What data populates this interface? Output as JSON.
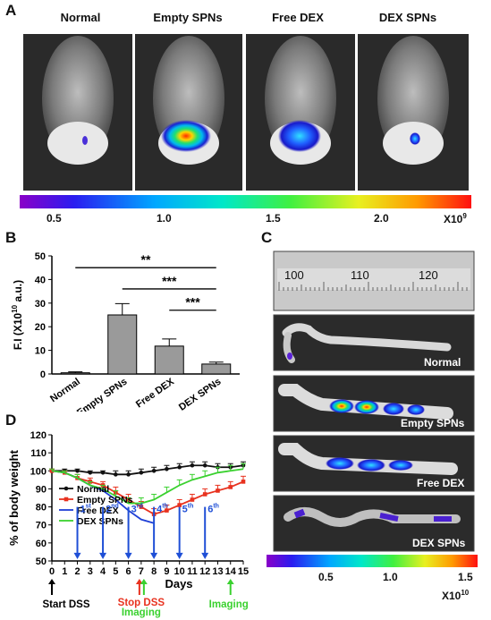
{
  "panelA": {
    "letter": "A",
    "groups": [
      "Normal",
      "Empty SPNs",
      "Free DEX",
      "DEX SPNs"
    ],
    "colorbar": {
      "ticks": [
        "0.5",
        "1.0",
        "1.5",
        "2.0"
      ],
      "unit_base": "X10",
      "unit_exp": "9"
    }
  },
  "panelB": {
    "letter": "B"
  },
  "panelC": {
    "letter": "C",
    "ruler_numbers": [
      "100",
      "110",
      "120"
    ],
    "colon_labels": [
      "Normal",
      "Empty SPNs",
      "Free DEX",
      "DEX SPNs"
    ],
    "colorbar": {
      "ticks": [
        "0.5",
        "1.0",
        "1.5"
      ],
      "unit_base": "X10",
      "unit_exp": "10"
    }
  },
  "panelD": {
    "letter": "D",
    "annotations": {
      "start": "Start DSS",
      "stop": "Stop DSS",
      "imaging_mid": "Imaging",
      "imaging_end": "Imaging",
      "doses": [
        {
          "num": "1",
          "sup": "st",
          "day": 2
        },
        {
          "num": "2",
          "sup": "nd",
          "day": 4
        },
        {
          "num": "3",
          "sup": "rd",
          "day": 6
        },
        {
          "num": "4",
          "sup": "th",
          "day": 8
        },
        {
          "num": "5",
          "sup": "th",
          "day": 10
        },
        {
          "num": "6",
          "sup": "th",
          "day": 12
        }
      ]
    }
  },
  "chart_data": [
    {
      "type": "bar",
      "ylabel": "F.I (X10 10 a.u.)",
      "ylabel_parts": {
        "pre": "F.I (X10",
        "exp": "10",
        "post": " a.u.)"
      },
      "categories": [
        "Normal",
        "Empty SPNs",
        "Free DEX",
        "DEX SPNs"
      ],
      "values": [
        0.5,
        25,
        11.8,
        4.2
      ],
      "errors": [
        0.4,
        4.8,
        3.0,
        0.8
      ],
      "ylim": [
        0,
        50
      ],
      "yticks": [
        0,
        10,
        20,
        30,
        40,
        50
      ],
      "significance": [
        {
          "from": "Normal",
          "to": "DEX SPNs",
          "label": "**"
        },
        {
          "from": "Empty SPNs",
          "to": "DEX SPNs",
          "label": "***"
        },
        {
          "from": "Free DEX",
          "to": "DEX SPNs",
          "label": "***"
        }
      ]
    },
    {
      "type": "line",
      "xlabel": "Days",
      "ylabel": "% of body weight",
      "xlim": [
        0,
        15
      ],
      "ylim": [
        50,
        120
      ],
      "xticks": [
        0,
        1,
        2,
        3,
        4,
        5,
        6,
        7,
        8,
        9,
        10,
        11,
        12,
        13,
        14,
        15
      ],
      "yticks": [
        50,
        60,
        70,
        80,
        90,
        100,
        110,
        120
      ],
      "legend_position": "left",
      "series": [
        {
          "name": "Normal",
          "color": "#111111",
          "marker": "circle",
          "x": [
            0,
            1,
            2,
            3,
            4,
            5,
            6,
            7,
            8,
            9,
            10,
            11,
            12,
            13,
            14,
            15
          ],
          "y": [
            100,
            100,
            100,
            99,
            99,
            98,
            98,
            99,
            100,
            101,
            102,
            103,
            103,
            102,
            102,
            103
          ],
          "err": [
            1,
            1,
            1,
            1,
            1,
            2,
            2,
            2,
            2,
            2,
            2,
            2,
            2,
            2,
            2,
            2
          ]
        },
        {
          "name": "Empty SPNs",
          "color": "#e8321f",
          "marker": "square",
          "x": [
            0,
            1,
            2,
            3,
            4,
            5,
            6,
            7,
            8,
            9,
            10,
            11,
            12,
            13,
            14,
            15
          ],
          "y": [
            100,
            99,
            96,
            94,
            92,
            88,
            84,
            80,
            76,
            78,
            81,
            84,
            87,
            89,
            91,
            94
          ],
          "err": [
            1,
            1,
            2,
            2,
            2,
            3,
            3,
            3,
            3,
            3,
            3,
            3,
            3,
            3,
            3,
            3
          ]
        },
        {
          "name": "Free DEX",
          "color": "#1f3fd6",
          "marker": "none",
          "x": [
            0,
            1,
            2,
            3,
            4,
            5,
            6,
            7,
            8
          ],
          "y": [
            100,
            99,
            96,
            92,
            89,
            84,
            78,
            73,
            71
          ],
          "err": [
            0,
            0,
            0,
            0,
            0,
            0,
            0,
            0,
            0
          ]
        },
        {
          "name": "DEX SPNs",
          "color": "#3ad12f",
          "marker": "none",
          "x": [
            0,
            1,
            2,
            3,
            4,
            5,
            6,
            7,
            8,
            9,
            10,
            11,
            12,
            13,
            14,
            15
          ],
          "y": [
            100,
            99,
            96,
            92,
            90,
            86,
            82,
            82,
            84,
            88,
            92,
            95,
            97,
            99,
            100,
            101
          ],
          "err": [
            1,
            1,
            2,
            2,
            2,
            3,
            3,
            3,
            3,
            3,
            3,
            3,
            3,
            3,
            3,
            3
          ]
        }
      ]
    }
  ]
}
